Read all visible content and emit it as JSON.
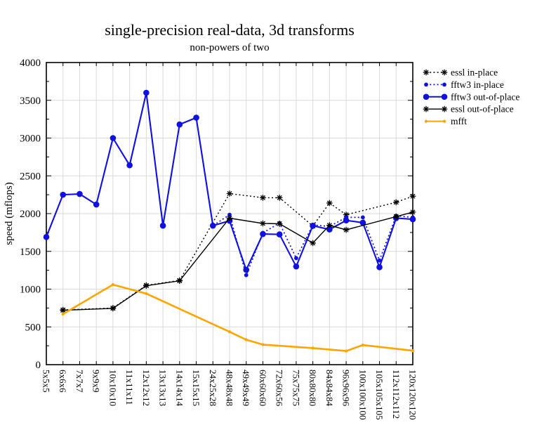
{
  "page": {
    "background": "#ffffff"
  },
  "chart_data": {
    "type": "line",
    "title": "single-precision real-data, 3d transforms",
    "subtitle": "non-powers of two",
    "xlabel": "",
    "ylabel": "speed (mflops)",
    "ylim": [
      0,
      4000
    ],
    "ytick_major": 500,
    "ytick_minor": 250,
    "ytick_labels": [
      "0",
      "500",
      "1000",
      "1500",
      "2000",
      "2500",
      "3000",
      "3500",
      "4000"
    ],
    "grid": true,
    "legend_position": "top-right-outside",
    "categories": [
      "5x5x5",
      "6x6x6",
      "7x7x7",
      "9x9x9",
      "10x10x10",
      "11x11x11",
      "12x12x12",
      "13x13x13",
      "14x14x14",
      "15x15x15",
      "24x25x28",
      "48x48x48",
      "49x49x49",
      "60x60x60",
      "72x60x56",
      "75x75x75",
      "80x80x80",
      "84x84x84",
      "96x96x96",
      "100x100x100",
      "105x105x105",
      "112x112x112",
      "120x120x120"
    ],
    "series": [
      {
        "name": "essl in-place",
        "color": "#000000",
        "line_style": "dotted",
        "line_width": 1.4,
        "marker": "star",
        "points": [
          [
            1,
            725
          ],
          [
            4,
            750
          ],
          [
            6,
            1050
          ],
          [
            8,
            1115
          ],
          [
            11,
            2265
          ],
          [
            13,
            2210
          ],
          [
            14,
            2210
          ],
          [
            16,
            1835
          ],
          [
            17,
            2140
          ],
          [
            18,
            1985
          ],
          [
            21,
            2150
          ],
          [
            22,
            2230
          ]
        ]
      },
      {
        "name": "fftw3 in-place",
        "color": "#1010e0",
        "line_style": "dotted",
        "line_width": 1.7,
        "marker": "small-circle",
        "points": [
          [
            0,
            1690
          ],
          [
            1,
            2250
          ],
          [
            2,
            2260
          ],
          [
            3,
            2120
          ],
          [
            4,
            3000
          ],
          [
            5,
            2640
          ],
          [
            6,
            3600
          ],
          [
            7,
            1840
          ],
          [
            8,
            3180
          ],
          [
            9,
            3270
          ],
          [
            10,
            1840
          ],
          [
            11,
            1985
          ],
          [
            12,
            1185
          ],
          [
            13,
            1745
          ],
          [
            14,
            1875
          ],
          [
            15,
            1410
          ],
          [
            16,
            1850
          ],
          [
            17,
            1830
          ],
          [
            18,
            1950
          ],
          [
            19,
            1950
          ],
          [
            20,
            1380
          ],
          [
            21,
            1970
          ],
          [
            22,
            1950
          ]
        ]
      },
      {
        "name": "fftw3 out-of-place",
        "color": "#1010e0",
        "line_style": "solid",
        "line_width": 2.1,
        "marker": "large-circle",
        "points": [
          [
            0,
            1690
          ],
          [
            1,
            2250
          ],
          [
            2,
            2260
          ],
          [
            3,
            2120
          ],
          [
            4,
            3000
          ],
          [
            5,
            2640
          ],
          [
            6,
            3600
          ],
          [
            7,
            1840
          ],
          [
            8,
            3180
          ],
          [
            9,
            3270
          ],
          [
            10,
            1840
          ],
          [
            11,
            1905
          ],
          [
            12,
            1255
          ],
          [
            13,
            1730
          ],
          [
            14,
            1725
          ],
          [
            15,
            1300
          ],
          [
            16,
            1840
          ],
          [
            17,
            1790
          ],
          [
            18,
            1910
          ],
          [
            19,
            1880
          ],
          [
            20,
            1290
          ],
          [
            21,
            1940
          ],
          [
            22,
            1925
          ]
        ]
      },
      {
        "name": "essl out-of-place",
        "color": "#000000",
        "line_style": "solid",
        "line_width": 1.4,
        "marker": "star",
        "points": [
          [
            1,
            720
          ],
          [
            4,
            745
          ],
          [
            6,
            1045
          ],
          [
            8,
            1110
          ],
          [
            11,
            1940
          ],
          [
            13,
            1870
          ],
          [
            14,
            1865
          ],
          [
            16,
            1610
          ],
          [
            17,
            1845
          ],
          [
            18,
            1785
          ],
          [
            21,
            1960
          ],
          [
            22,
            2020
          ]
        ]
      },
      {
        "name": "mfft",
        "color": "#ffa500",
        "line_style": "solid",
        "line_width": 2.6,
        "marker": "dot",
        "points": [
          [
            1,
            670
          ],
          [
            4,
            1060
          ],
          [
            6,
            940
          ],
          [
            11,
            435
          ],
          [
            12,
            330
          ],
          [
            13,
            265
          ],
          [
            16,
            220
          ],
          [
            18,
            180
          ],
          [
            19,
            260
          ],
          [
            22,
            185
          ]
        ]
      }
    ]
  }
}
